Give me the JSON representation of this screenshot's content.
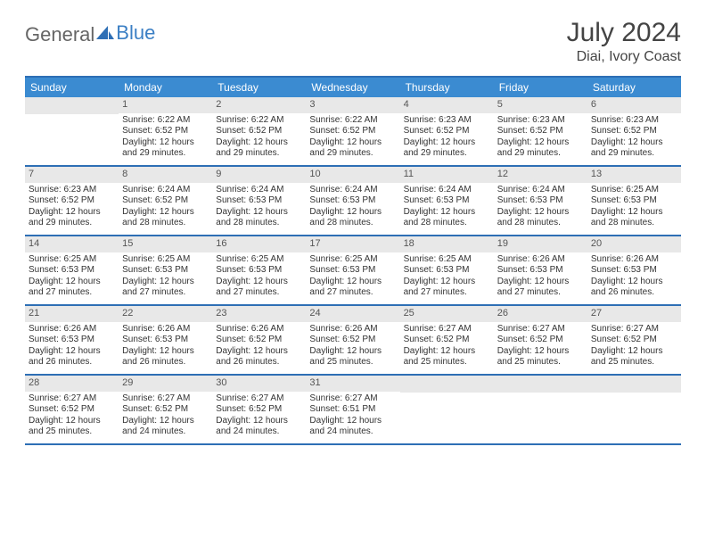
{
  "logo": {
    "part1": "General",
    "part2": "Blue"
  },
  "header": {
    "title": "July 2024",
    "location": "Diai, Ivory Coast"
  },
  "colors": {
    "header_bg": "#3b8bd1",
    "rule": "#2e6fb5",
    "daynum_bg": "#e8e8e8",
    "text": "#333333",
    "logo_gray": "#666666",
    "logo_blue": "#3b7fc4"
  },
  "dayHeaders": [
    "Sunday",
    "Monday",
    "Tuesday",
    "Wednesday",
    "Thursday",
    "Friday",
    "Saturday"
  ],
  "weeks": [
    [
      {
        "num": "",
        "sunrise": "",
        "sunset": "",
        "daylight": ""
      },
      {
        "num": "1",
        "sunrise": "Sunrise: 6:22 AM",
        "sunset": "Sunset: 6:52 PM",
        "daylight": "Daylight: 12 hours and 29 minutes."
      },
      {
        "num": "2",
        "sunrise": "Sunrise: 6:22 AM",
        "sunset": "Sunset: 6:52 PM",
        "daylight": "Daylight: 12 hours and 29 minutes."
      },
      {
        "num": "3",
        "sunrise": "Sunrise: 6:22 AM",
        "sunset": "Sunset: 6:52 PM",
        "daylight": "Daylight: 12 hours and 29 minutes."
      },
      {
        "num": "4",
        "sunrise": "Sunrise: 6:23 AM",
        "sunset": "Sunset: 6:52 PM",
        "daylight": "Daylight: 12 hours and 29 minutes."
      },
      {
        "num": "5",
        "sunrise": "Sunrise: 6:23 AM",
        "sunset": "Sunset: 6:52 PM",
        "daylight": "Daylight: 12 hours and 29 minutes."
      },
      {
        "num": "6",
        "sunrise": "Sunrise: 6:23 AM",
        "sunset": "Sunset: 6:52 PM",
        "daylight": "Daylight: 12 hours and 29 minutes."
      }
    ],
    [
      {
        "num": "7",
        "sunrise": "Sunrise: 6:23 AM",
        "sunset": "Sunset: 6:52 PM",
        "daylight": "Daylight: 12 hours and 29 minutes."
      },
      {
        "num": "8",
        "sunrise": "Sunrise: 6:24 AM",
        "sunset": "Sunset: 6:52 PM",
        "daylight": "Daylight: 12 hours and 28 minutes."
      },
      {
        "num": "9",
        "sunrise": "Sunrise: 6:24 AM",
        "sunset": "Sunset: 6:53 PM",
        "daylight": "Daylight: 12 hours and 28 minutes."
      },
      {
        "num": "10",
        "sunrise": "Sunrise: 6:24 AM",
        "sunset": "Sunset: 6:53 PM",
        "daylight": "Daylight: 12 hours and 28 minutes."
      },
      {
        "num": "11",
        "sunrise": "Sunrise: 6:24 AM",
        "sunset": "Sunset: 6:53 PM",
        "daylight": "Daylight: 12 hours and 28 minutes."
      },
      {
        "num": "12",
        "sunrise": "Sunrise: 6:24 AM",
        "sunset": "Sunset: 6:53 PM",
        "daylight": "Daylight: 12 hours and 28 minutes."
      },
      {
        "num": "13",
        "sunrise": "Sunrise: 6:25 AM",
        "sunset": "Sunset: 6:53 PM",
        "daylight": "Daylight: 12 hours and 28 minutes."
      }
    ],
    [
      {
        "num": "14",
        "sunrise": "Sunrise: 6:25 AM",
        "sunset": "Sunset: 6:53 PM",
        "daylight": "Daylight: 12 hours and 27 minutes."
      },
      {
        "num": "15",
        "sunrise": "Sunrise: 6:25 AM",
        "sunset": "Sunset: 6:53 PM",
        "daylight": "Daylight: 12 hours and 27 minutes."
      },
      {
        "num": "16",
        "sunrise": "Sunrise: 6:25 AM",
        "sunset": "Sunset: 6:53 PM",
        "daylight": "Daylight: 12 hours and 27 minutes."
      },
      {
        "num": "17",
        "sunrise": "Sunrise: 6:25 AM",
        "sunset": "Sunset: 6:53 PM",
        "daylight": "Daylight: 12 hours and 27 minutes."
      },
      {
        "num": "18",
        "sunrise": "Sunrise: 6:25 AM",
        "sunset": "Sunset: 6:53 PM",
        "daylight": "Daylight: 12 hours and 27 minutes."
      },
      {
        "num": "19",
        "sunrise": "Sunrise: 6:26 AM",
        "sunset": "Sunset: 6:53 PM",
        "daylight": "Daylight: 12 hours and 27 minutes."
      },
      {
        "num": "20",
        "sunrise": "Sunrise: 6:26 AM",
        "sunset": "Sunset: 6:53 PM",
        "daylight": "Daylight: 12 hours and 26 minutes."
      }
    ],
    [
      {
        "num": "21",
        "sunrise": "Sunrise: 6:26 AM",
        "sunset": "Sunset: 6:53 PM",
        "daylight": "Daylight: 12 hours and 26 minutes."
      },
      {
        "num": "22",
        "sunrise": "Sunrise: 6:26 AM",
        "sunset": "Sunset: 6:53 PM",
        "daylight": "Daylight: 12 hours and 26 minutes."
      },
      {
        "num": "23",
        "sunrise": "Sunrise: 6:26 AM",
        "sunset": "Sunset: 6:52 PM",
        "daylight": "Daylight: 12 hours and 26 minutes."
      },
      {
        "num": "24",
        "sunrise": "Sunrise: 6:26 AM",
        "sunset": "Sunset: 6:52 PM",
        "daylight": "Daylight: 12 hours and 25 minutes."
      },
      {
        "num": "25",
        "sunrise": "Sunrise: 6:27 AM",
        "sunset": "Sunset: 6:52 PM",
        "daylight": "Daylight: 12 hours and 25 minutes."
      },
      {
        "num": "26",
        "sunrise": "Sunrise: 6:27 AM",
        "sunset": "Sunset: 6:52 PM",
        "daylight": "Daylight: 12 hours and 25 minutes."
      },
      {
        "num": "27",
        "sunrise": "Sunrise: 6:27 AM",
        "sunset": "Sunset: 6:52 PM",
        "daylight": "Daylight: 12 hours and 25 minutes."
      }
    ],
    [
      {
        "num": "28",
        "sunrise": "Sunrise: 6:27 AM",
        "sunset": "Sunset: 6:52 PM",
        "daylight": "Daylight: 12 hours and 25 minutes."
      },
      {
        "num": "29",
        "sunrise": "Sunrise: 6:27 AM",
        "sunset": "Sunset: 6:52 PM",
        "daylight": "Daylight: 12 hours and 24 minutes."
      },
      {
        "num": "30",
        "sunrise": "Sunrise: 6:27 AM",
        "sunset": "Sunset: 6:52 PM",
        "daylight": "Daylight: 12 hours and 24 minutes."
      },
      {
        "num": "31",
        "sunrise": "Sunrise: 6:27 AM",
        "sunset": "Sunset: 6:51 PM",
        "daylight": "Daylight: 12 hours and 24 minutes."
      },
      {
        "num": "",
        "sunrise": "",
        "sunset": "",
        "daylight": ""
      },
      {
        "num": "",
        "sunrise": "",
        "sunset": "",
        "daylight": ""
      },
      {
        "num": "",
        "sunrise": "",
        "sunset": "",
        "daylight": ""
      }
    ]
  ]
}
